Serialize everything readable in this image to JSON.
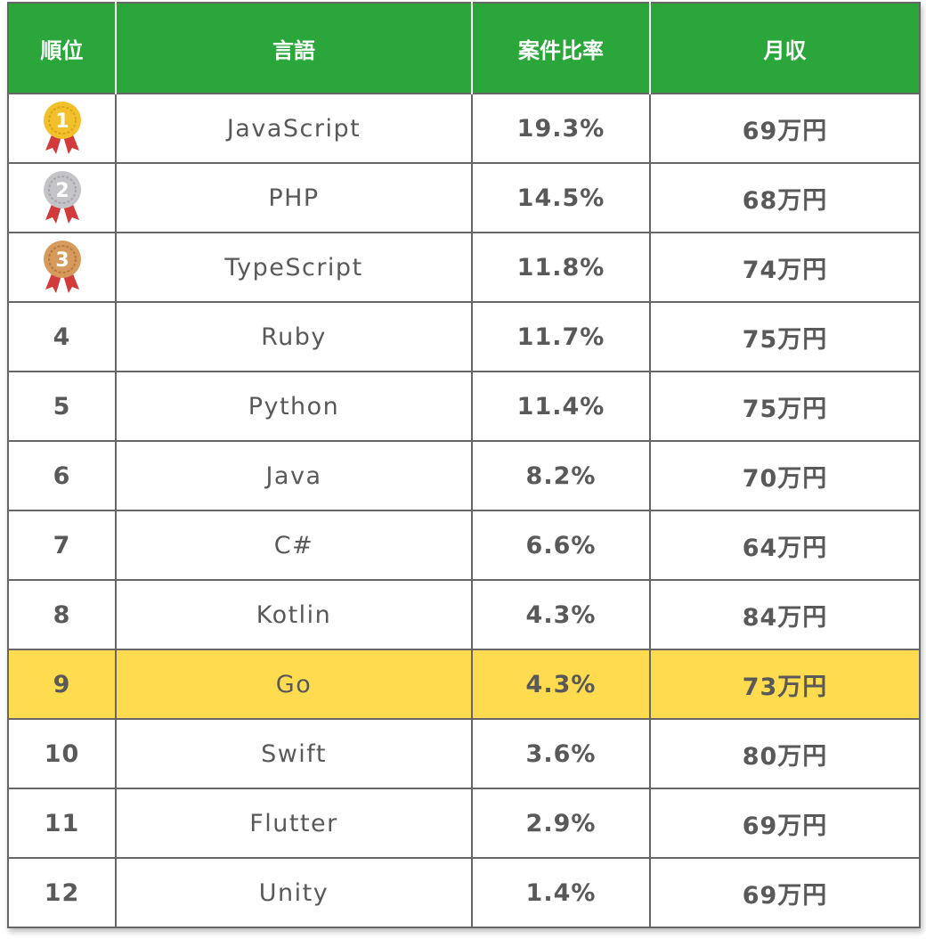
{
  "headers": [
    "順位",
    "言語",
    "案件比率",
    "月収"
  ],
  "highlight_color": "#ffdc4f",
  "header_color": "#2aa63a",
  "rows": [
    {
      "rank": "1",
      "medal": "gold-medal",
      "lang": "JavaScript",
      "ratio": "19.3%",
      "income": "69万円"
    },
    {
      "rank": "2",
      "medal": "silver-medal",
      "lang": "PHP",
      "ratio": "14.5%",
      "income": "68万円"
    },
    {
      "rank": "3",
      "medal": "bronze-medal",
      "lang": "TypeScript",
      "ratio": "11.8%",
      "income": "74万円"
    },
    {
      "rank": "4",
      "lang": "Ruby",
      "ratio": "11.7%",
      "income": "75万円"
    },
    {
      "rank": "5",
      "lang": "Python",
      "ratio": "11.4%",
      "income": "75万円"
    },
    {
      "rank": "6",
      "lang": "Java",
      "ratio": "8.2%",
      "income": "70万円"
    },
    {
      "rank": "7",
      "lang": "C#",
      "ratio": "6.6%",
      "income": "64万円"
    },
    {
      "rank": "8",
      "lang": "Kotlin",
      "ratio": "4.3%",
      "income": "84万円"
    },
    {
      "rank": "9",
      "lang": "Go",
      "ratio": "4.3%",
      "income": "73万円",
      "highlight": true
    },
    {
      "rank": "10",
      "lang": "Swift",
      "ratio": "3.6%",
      "income": "80万円"
    },
    {
      "rank": "11",
      "lang": "Flutter",
      "ratio": "2.9%",
      "income": "69万円"
    },
    {
      "rank": "12",
      "lang": "Unity",
      "ratio": "1.4%",
      "income": "69万円"
    }
  ]
}
